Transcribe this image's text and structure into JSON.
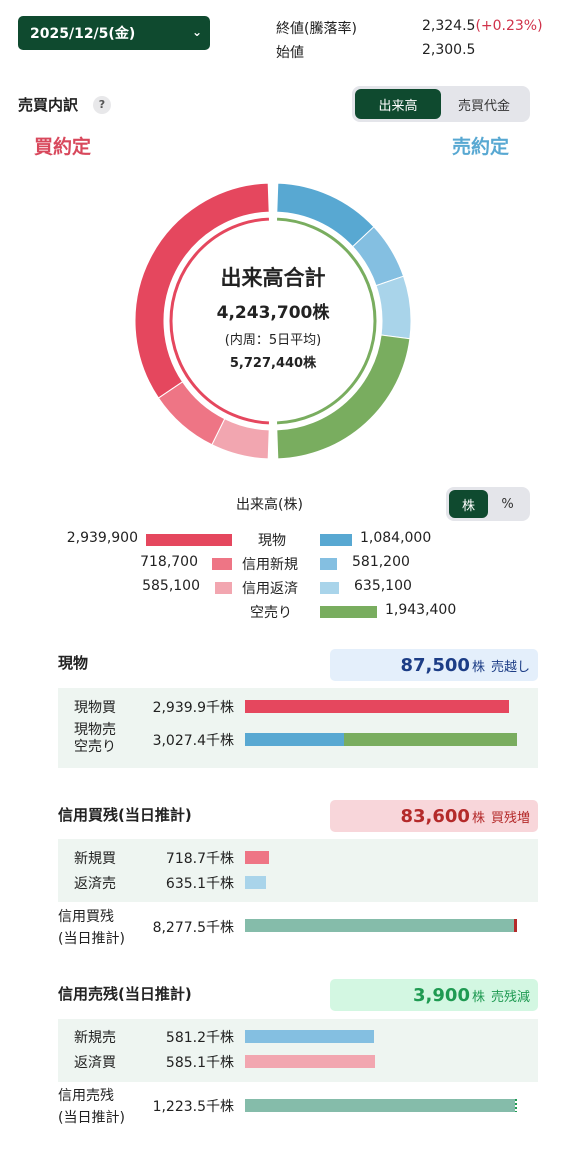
{
  "header": {
    "date_label": "2025/12/5(金)",
    "close_label": "終値(騰落率)",
    "close_value": "2,324.5",
    "close_change": "(+0.23%)",
    "open_label": "始値",
    "open_value": "2,300.5"
  },
  "breakdown": {
    "title": "売買内訳",
    "help": "?",
    "toggle": [
      "出来高",
      "売買代金"
    ],
    "buy_title": "買約定",
    "sell_title": "売約定",
    "center_title": "出来高合計",
    "center_total": "4,243,700株",
    "center_sub": "(内周：5日平均)",
    "center_avg": "5,727,440株"
  },
  "donut": {
    "outer": [
      {
        "name": "現物買",
        "value": 2939900,
        "color": "#e5475e"
      },
      {
        "name": "信用新規買",
        "value": 718700,
        "color": "#ee7585"
      },
      {
        "name": "信用返済買",
        "value": 585100,
        "color": "#f2a6b0"
      },
      {
        "name": "現物売",
        "value": 1084000,
        "color": "#58a8d2"
      },
      {
        "name": "信用新規売",
        "value": 581200,
        "color": "#84bfe1"
      },
      {
        "name": "信用返済売",
        "value": 635100,
        "color": "#a9d4ea"
      },
      {
        "name": "空売り",
        "value": 1943400,
        "color": "#79ad5f"
      }
    ]
  },
  "legend": {
    "unit_label": "出来高(株)",
    "unit_toggle": [
      "株",
      "%"
    ],
    "rows": [
      {
        "left": "2,939,900",
        "label": "現物",
        "right": "1,084,000",
        "lcolor": "#e5475e",
        "rcolor": "#58a8d2",
        "lshare": 1.0,
        "rshare": 0.37
      },
      {
        "left": "718,700",
        "label": "信用新規",
        "right": "581,200",
        "lcolor": "#ee7585",
        "rcolor": "#84bfe1",
        "lshare": 0.24,
        "rshare": 0.2
      },
      {
        "left": "585,100",
        "label": "信用返済",
        "right": "635,100",
        "lcolor": "#f2a6b0",
        "rcolor": "#a9d4ea",
        "lshare": 0.2,
        "rshare": 0.22
      },
      {
        "left": "",
        "label": "空売り",
        "right": "1,943,400",
        "lcolor": "",
        "rcolor": "#79ad5f",
        "lshare": 0,
        "rshare": 0.66
      }
    ]
  },
  "spot": {
    "title": "現物",
    "badge_num": "87,500",
    "badge_unit": "株",
    "badge_text": "売越し",
    "rows": [
      {
        "label": "現物買",
        "value": "2,939.9千株"
      },
      {
        "label": "現物売",
        "label2": "空売り",
        "value": "3,027.4千株"
      }
    ]
  },
  "margin_buy": {
    "title": "信用買残(当日推計)",
    "badge_num": "83,600",
    "badge_unit": "株",
    "badge_text": "買残増",
    "rows": [
      {
        "label": "新規買",
        "value": "718.7千株"
      },
      {
        "label": "返済売",
        "value": "635.1千株"
      },
      {
        "label": "信用買残",
        "label2": "(当日推計)",
        "value": "8,277.5千株"
      }
    ]
  },
  "margin_sell": {
    "title": "信用売残(当日推計)",
    "badge_num": "3,900",
    "badge_unit": "株",
    "badge_text": "売残減",
    "rows": [
      {
        "label": "新規売",
        "value": "581.2千株"
      },
      {
        "label": "返済買",
        "value": "585.1千株"
      },
      {
        "label": "信用売残",
        "label2": "(当日推計)",
        "value": "1,223.5千株"
      }
    ]
  },
  "colors": {
    "accent": "#0f4a2f",
    "buy": "#e5475e",
    "sell": "#58a8d2",
    "short": "#79ad5f",
    "balance": "#85bcaa"
  }
}
